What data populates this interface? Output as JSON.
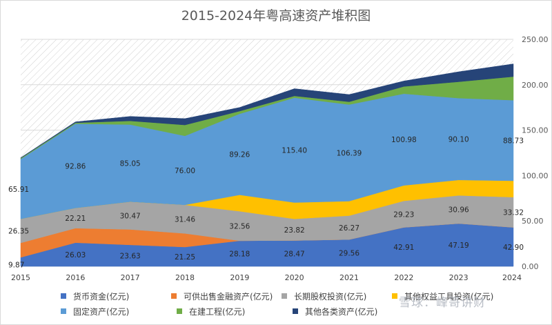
{
  "chart_data": {
    "type": "area",
    "stacked": true,
    "title": "2015-2024年粤高速资产堆积图",
    "x": [
      "2015",
      "2016",
      "2017",
      "2018",
      "2019",
      "2020",
      "2021",
      "2022",
      "2023",
      "2024"
    ],
    "ylim": [
      0,
      250
    ],
    "yticks": [
      "0.00",
      "50.00",
      "100.00",
      "150.00",
      "200.00",
      "250.00"
    ],
    "y_axis_side": "right",
    "legend_position": "bottom",
    "series": [
      {
        "name": "货币资金(亿元)",
        "color": "#4472C4",
        "values": [
          9.87,
          26.03,
          23.63,
          21.25,
          28.18,
          28.47,
          29.56,
          42.91,
          47.19,
          42.9
        ],
        "labels": [
          "9.87",
          "26.03",
          "23.63",
          "21.25",
          "28.18",
          "28.47",
          "29.56",
          "42.91",
          "47.19",
          "42.90"
        ]
      },
      {
        "name": "可供出售金融资产(亿元)",
        "color": "#ED7D31",
        "values": [
          16,
          16,
          17,
          15,
          0,
          0,
          0,
          0,
          0,
          0
        ],
        "labels": [
          "",
          "",
          "",
          "",
          "",
          "",
          "",
          "",
          "",
          ""
        ]
      },
      {
        "name": "长期股权投资(亿元)",
        "color": "#A5A5A5",
        "values": [
          26.35,
          22.21,
          30.47,
          31.46,
          32.56,
          23.82,
          26.27,
          29.23,
          30.96,
          33.32
        ],
        "labels": [
          "26.35",
          "22.21",
          "30.47",
          "31.46",
          "32.56",
          "23.82",
          "26.27",
          "29.23",
          "30.96",
          "33.32"
        ]
      },
      {
        "name": "其他权益工具投资(亿元)",
        "color": "#FFC000",
        "values": [
          0,
          0,
          0,
          0,
          18,
          18,
          16,
          17,
          17,
          18
        ],
        "labels": [
          "",
          "",
          "",
          "",
          "",
          "",
          "",
          "",
          "",
          ""
        ]
      },
      {
        "name": "固定资产(亿元)",
        "color": "#5B9BD5",
        "values": [
          65.91,
          92.86,
          85.05,
          76.0,
          89.26,
          115.4,
          106.39,
          100.98,
          90.1,
          88.73
        ],
        "labels": [
          "65.91",
          "92.86",
          "85.05",
          "76.00",
          "89.26",
          "115.40",
          "106.39",
          "100.98",
          "90.10",
          "88.73"
        ]
      },
      {
        "name": "在建工程(亿元)",
        "color": "#70AD47",
        "values": [
          1,
          1,
          4,
          12,
          3,
          2,
          3,
          8,
          18,
          26
        ],
        "labels": [
          "",
          "",
          "",
          "",
          "",
          "",
          "",
          "",
          "",
          ""
        ]
      },
      {
        "name": "其他各类资产(亿元)",
        "color": "#264478",
        "values": [
          0.5,
          1,
          5,
          7,
          4,
          8,
          8,
          6,
          11,
          14
        ],
        "labels": [
          "",
          "",
          "",
          "",
          "",
          "",
          "",
          "",
          "",
          ""
        ]
      }
    ]
  },
  "watermark": "雪球：峰哥讲财"
}
